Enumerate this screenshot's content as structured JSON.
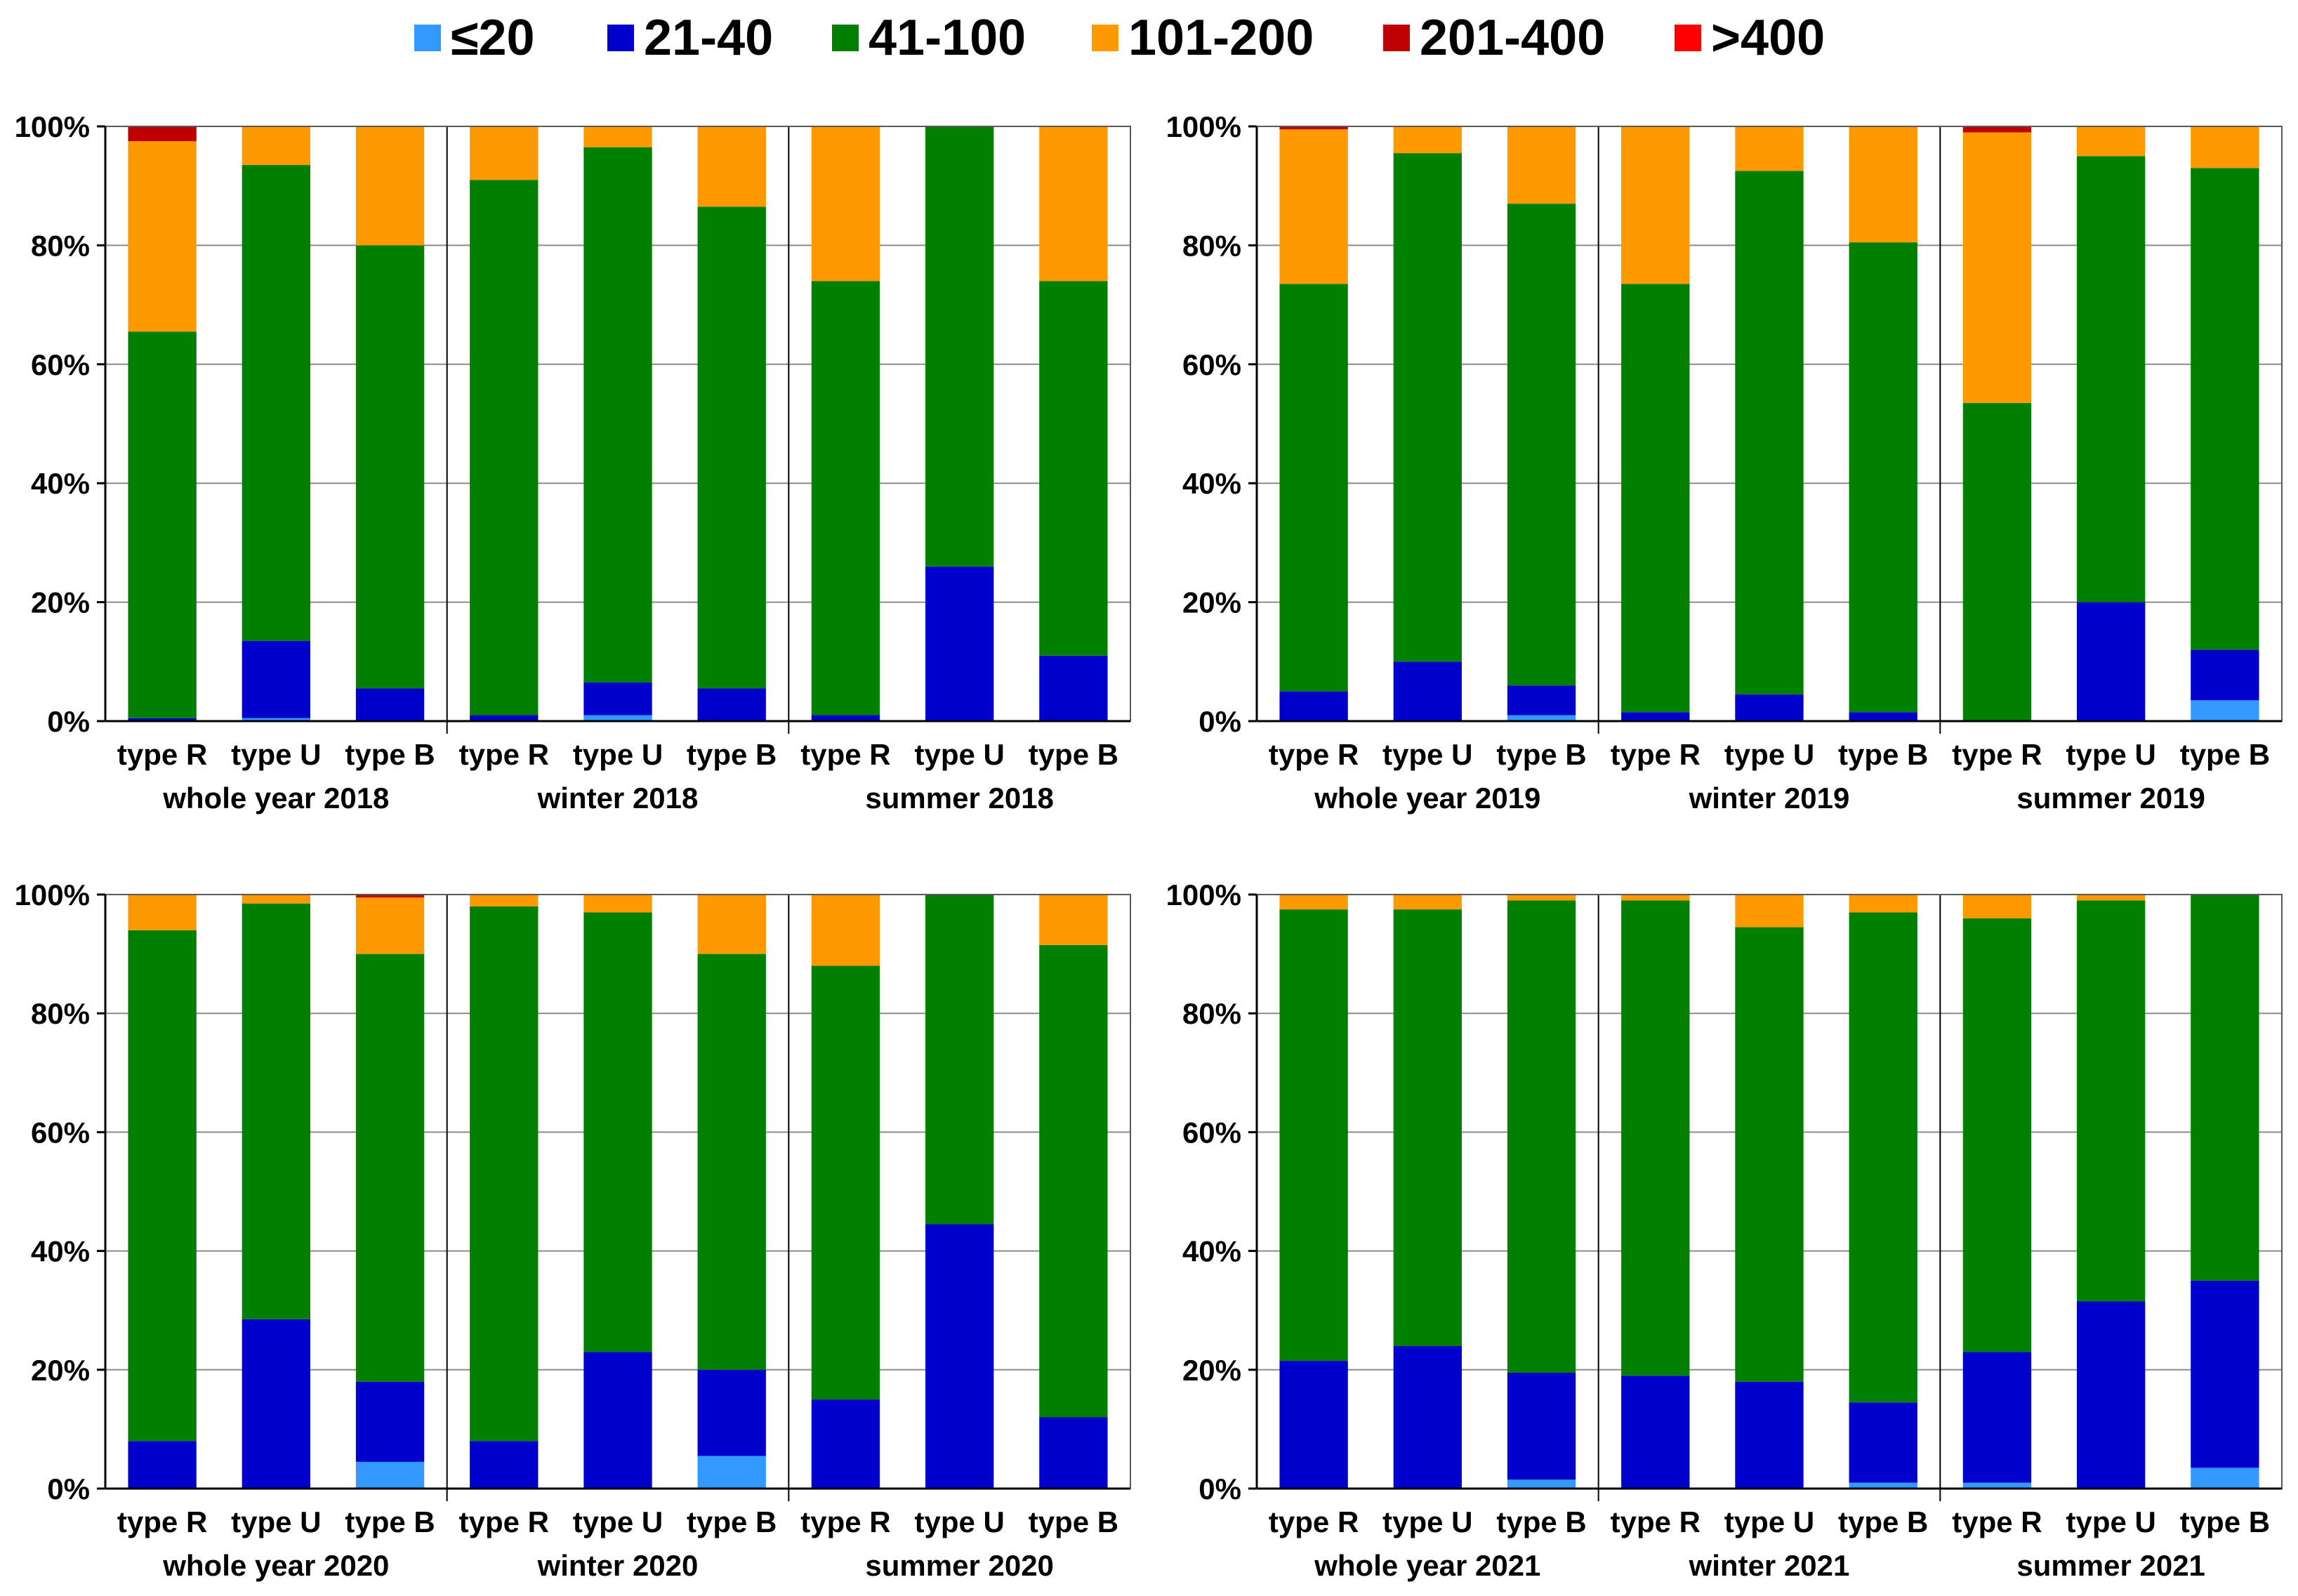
{
  "legend": [
    {
      "label": "≤20",
      "color": "#3399FF"
    },
    {
      "label": "21-40",
      "color": "#0000CC"
    },
    {
      "label": "41-100",
      "color": "#007F00"
    },
    {
      "label": "101-200",
      "color": "#FF9900"
    },
    {
      "label": "201-400",
      "color": "#C00000"
    },
    {
      "label": ">400",
      "color": "#FF0000"
    }
  ],
  "chart_data": [
    {
      "type": "bar",
      "stacked": true,
      "normalized": true,
      "title": "",
      "xlabel": "",
      "ylabel": "",
      "y_ticks": [
        "0%",
        "20%",
        "40%",
        "60%",
        "80%",
        "100%"
      ],
      "ylim": [
        0,
        100
      ],
      "categories": [
        "type R",
        "type U",
        "type B",
        "type R",
        "type U",
        "type B",
        "type R",
        "type U",
        "type B"
      ],
      "groups": [
        "whole year 2018",
        "winter 2018",
        "summer 2018"
      ],
      "series": [
        {
          "name": "≤20",
          "values": [
            0,
            0.5,
            0,
            0,
            1,
            0,
            0,
            0,
            0
          ]
        },
        {
          "name": "21-40",
          "values": [
            0.5,
            13,
            5.5,
            1,
            5.5,
            5.5,
            1,
            26,
            11
          ]
        },
        {
          "name": "41-100",
          "values": [
            65,
            80,
            74.5,
            90,
            90,
            81,
            73,
            74,
            63
          ]
        },
        {
          "name": "101-200",
          "values": [
            32,
            6.5,
            20,
            9,
            3.5,
            13.5,
            26,
            0,
            26
          ]
        },
        {
          "name": "201-400",
          "values": [
            2.5,
            0,
            0,
            0,
            0,
            0,
            0,
            0,
            0
          ]
        },
        {
          "name": ">400",
          "values": [
            0,
            0,
            0,
            0,
            0,
            0,
            0,
            0,
            0
          ]
        }
      ]
    },
    {
      "type": "bar",
      "stacked": true,
      "normalized": true,
      "title": "",
      "xlabel": "",
      "ylabel": "",
      "y_ticks": [
        "0%",
        "20%",
        "40%",
        "60%",
        "80%",
        "100%"
      ],
      "ylim": [
        0,
        100
      ],
      "categories": [
        "type R",
        "type U",
        "type B",
        "type R",
        "type U",
        "type B",
        "type R",
        "type U",
        "type B"
      ],
      "groups": [
        "whole year 2019",
        "winter 2019",
        "summer 2019"
      ],
      "series": [
        {
          "name": "≤20",
          "values": [
            0,
            0,
            1,
            0,
            0,
            0,
            0,
            0,
            3.5
          ]
        },
        {
          "name": "21-40",
          "values": [
            5,
            10,
            5,
            1.5,
            4.5,
            1.5,
            0,
            20,
            8.5
          ]
        },
        {
          "name": "41-100",
          "values": [
            68.5,
            85.5,
            81,
            72,
            88,
            79,
            53.5,
            75,
            81
          ]
        },
        {
          "name": "101-200",
          "values": [
            26,
            4.5,
            13,
            26.5,
            7.5,
            19.5,
            45.5,
            5,
            7
          ]
        },
        {
          "name": "201-400",
          "values": [
            0.5,
            0,
            0,
            0,
            0,
            0,
            1,
            0,
            0
          ]
        },
        {
          "name": ">400",
          "values": [
            0,
            0,
            0,
            0,
            0,
            0,
            0,
            0,
            0
          ]
        }
      ]
    },
    {
      "type": "bar",
      "stacked": true,
      "normalized": true,
      "title": "",
      "xlabel": "",
      "ylabel": "",
      "y_ticks": [
        "0%",
        "20%",
        "40%",
        "60%",
        "80%",
        "100%"
      ],
      "ylim": [
        0,
        100
      ],
      "categories": [
        "type R",
        "type U",
        "type B",
        "type R",
        "type U",
        "type B",
        "type R",
        "type U",
        "type B"
      ],
      "groups": [
        "whole year 2020",
        "winter 2020",
        "summer 2020"
      ],
      "series": [
        {
          "name": "≤20",
          "values": [
            0,
            0,
            4.5,
            0,
            0,
            5.5,
            0,
            0,
            0
          ]
        },
        {
          "name": "21-40",
          "values": [
            8,
            28.5,
            13.5,
            8,
            23,
            14.5,
            15,
            44.5,
            12
          ]
        },
        {
          "name": "41-100",
          "values": [
            86,
            70,
            72,
            90,
            74,
            70,
            73,
            55.5,
            79.5
          ]
        },
        {
          "name": "101-200",
          "values": [
            6,
            1.5,
            9.5,
            2,
            3,
            10,
            12,
            0,
            8.5
          ]
        },
        {
          "name": "201-400",
          "values": [
            0,
            0,
            0.5,
            0,
            0,
            0,
            0,
            0,
            0
          ]
        },
        {
          "name": ">400",
          "values": [
            0,
            0,
            0,
            0,
            0,
            0,
            0,
            0,
            0
          ]
        }
      ]
    },
    {
      "type": "bar",
      "stacked": true,
      "normalized": true,
      "title": "",
      "xlabel": "",
      "ylabel": "",
      "y_ticks": [
        "0%",
        "20%",
        "40%",
        "60%",
        "80%",
        "100%"
      ],
      "ylim": [
        0,
        100
      ],
      "categories": [
        "type R",
        "type U",
        "type B",
        "type R",
        "type U",
        "type B",
        "type R",
        "type U",
        "type B"
      ],
      "groups": [
        "whole year 2021",
        "winter 2021",
        "summer 2021"
      ],
      "series": [
        {
          "name": "≤20",
          "values": [
            0,
            0,
            1.5,
            0,
            0,
            1,
            1,
            0,
            3.5
          ]
        },
        {
          "name": "21-40",
          "values": [
            21.5,
            24,
            18,
            19,
            18,
            13.5,
            22,
            31.5,
            31.5
          ]
        },
        {
          "name": "41-100",
          "values": [
            76,
            73.5,
            79.5,
            80,
            76.5,
            82.5,
            73,
            67.5,
            65
          ]
        },
        {
          "name": "101-200",
          "values": [
            2.5,
            2.5,
            1,
            1,
            5.5,
            3,
            4,
            1,
            0
          ]
        },
        {
          "name": "201-400",
          "values": [
            0,
            0,
            0,
            0,
            0,
            0,
            0,
            0,
            0
          ]
        },
        {
          "name": ">400",
          "values": [
            0,
            0,
            0,
            0,
            0,
            0,
            0,
            0,
            0
          ]
        }
      ]
    }
  ]
}
